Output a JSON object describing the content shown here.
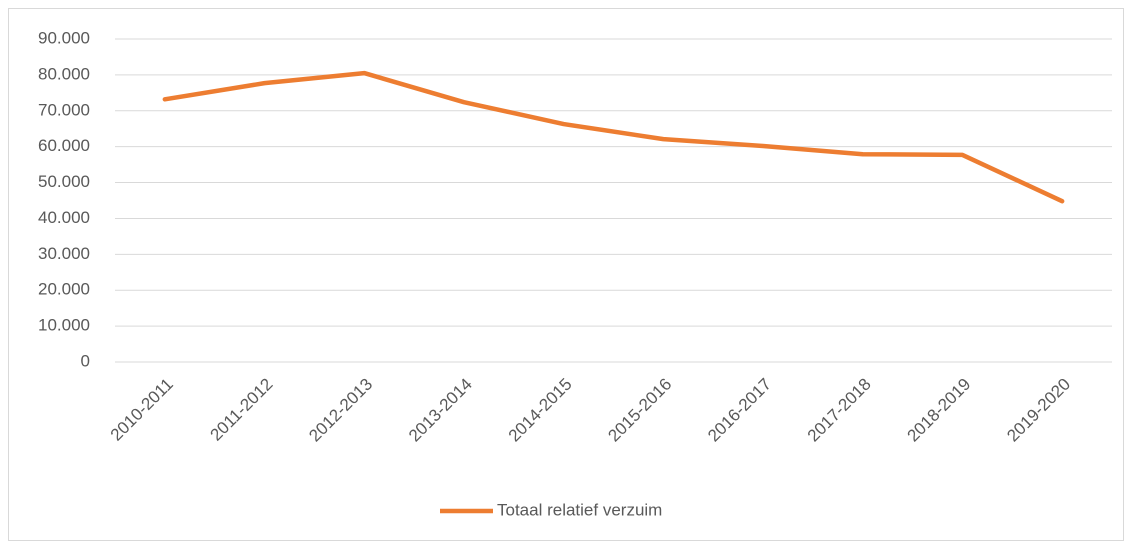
{
  "chart_data": {
    "type": "line",
    "categories": [
      "2010-2011",
      "2011-2012",
      "2012-2013",
      "2013-2014",
      "2014-2015",
      "2015-2016",
      "2016-2017",
      "2017-2018",
      "2018-2019",
      "2019-2020"
    ],
    "series": [
      {
        "name": "Totaal relatief verzuim",
        "color": "#ed7d31",
        "values": [
          73200,
          77700,
          80500,
          72400,
          66300,
          62100,
          60200,
          57900,
          57700,
          44800
        ]
      }
    ],
    "ylim": [
      0,
      90000
    ],
    "yticks": [
      0,
      {
        "value": 10000,
        "label": "10.000"
      },
      {
        "value": 20000,
        "label": "20.000"
      },
      {
        "value": 30000,
        "label": "30.000"
      },
      {
        "value": 40000,
        "label": "40.000"
      },
      {
        "value": 50000,
        "label": "50.000"
      },
      {
        "value": 60000,
        "label": "60.000"
      },
      {
        "value": 70000,
        "label": "70.000"
      },
      {
        "value": 80000,
        "label": "80.000"
      },
      {
        "value": 90000,
        "label": "90.000"
      }
    ],
    "grid": true,
    "legend": "bottom"
  }
}
